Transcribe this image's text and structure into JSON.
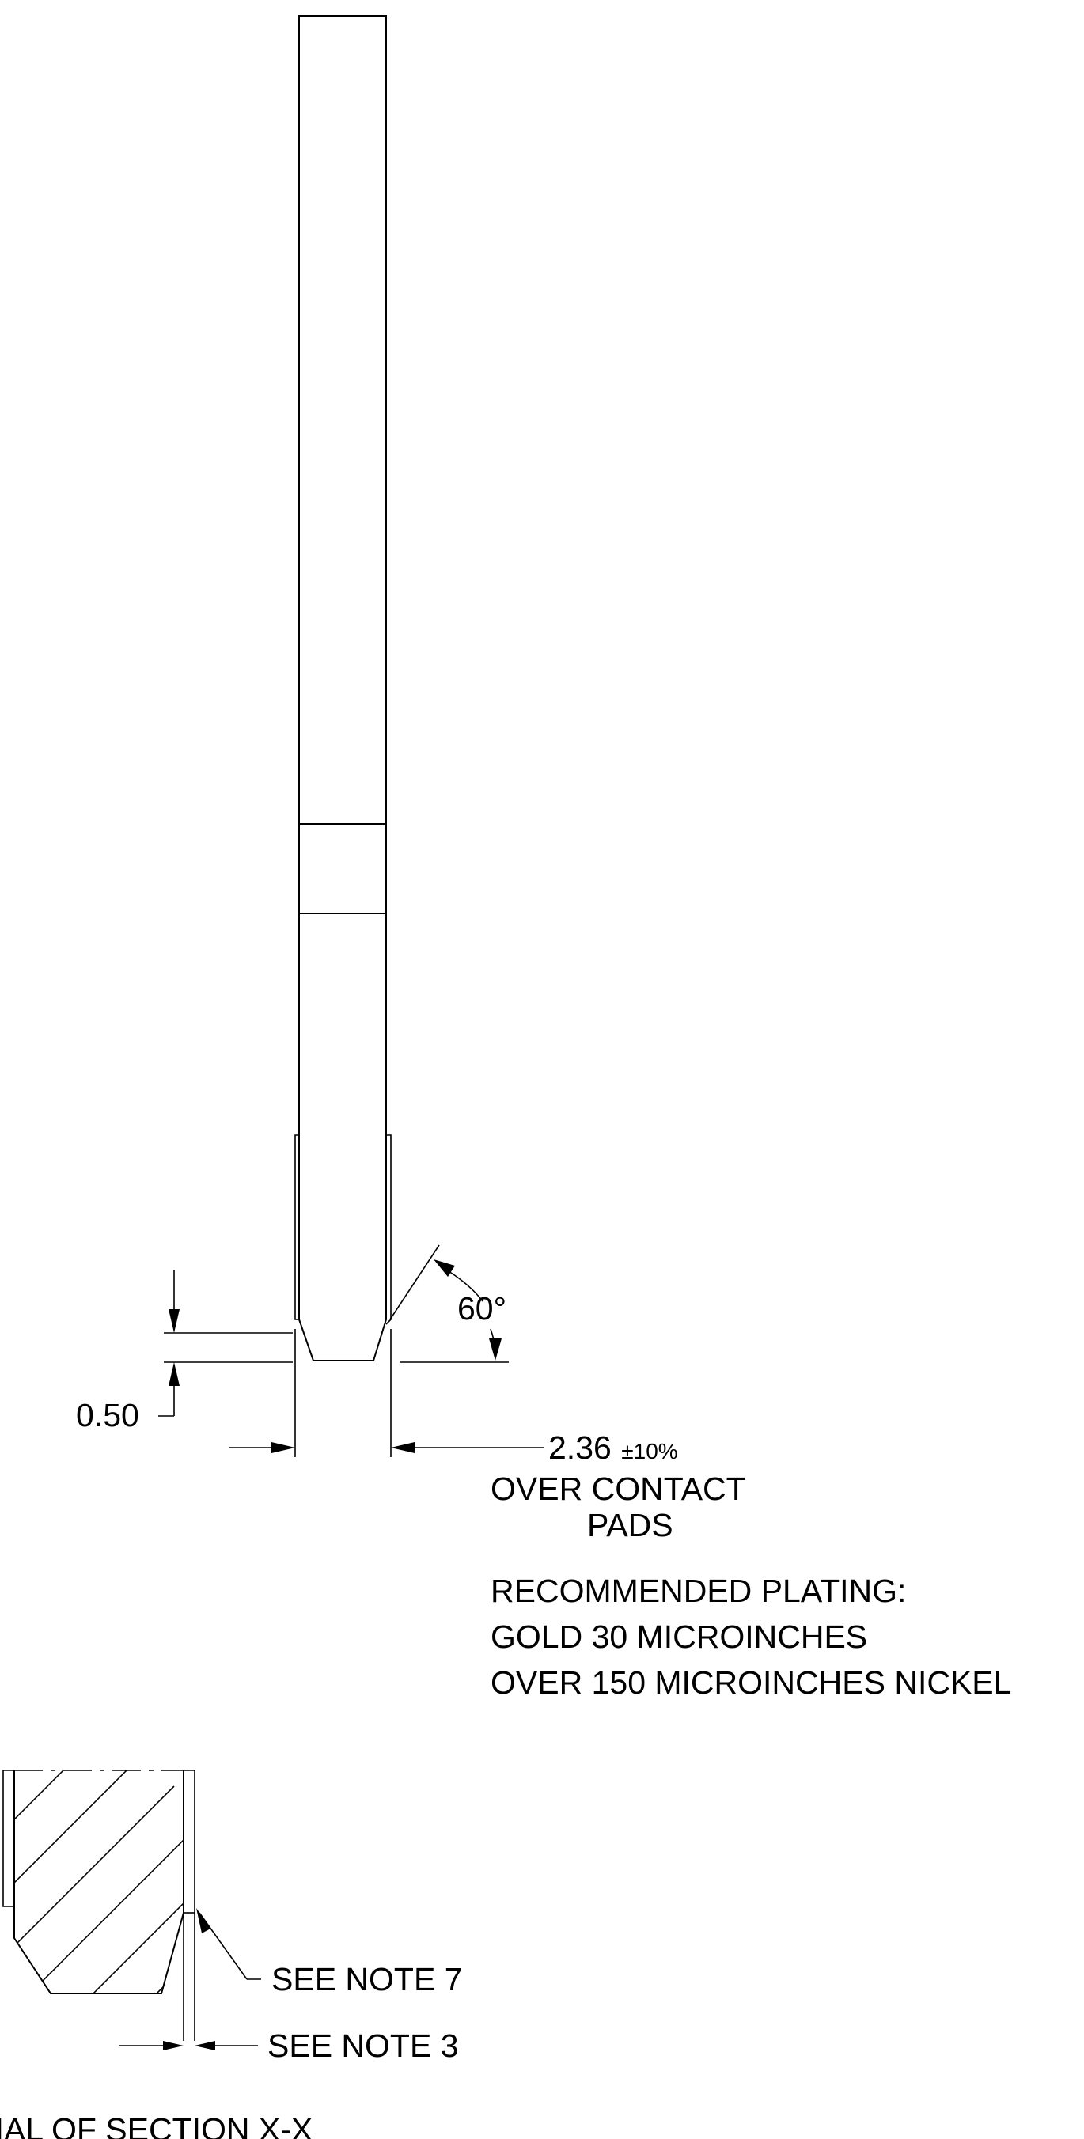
{
  "dimensions": {
    "depth": "0.50",
    "chamfer_angle": "60°",
    "pad_width": "2.36",
    "pad_tolerance": "±10%",
    "pad_note_line1": "OVER CONTACT",
    "pad_note_line2": "PADS"
  },
  "notes": {
    "plating_heading": "RECOMMENDED PLATING:",
    "plating_line1": "GOLD 30 MICROINCHES",
    "plating_line2": "OVER 150 MICROINCHES NICKEL"
  },
  "section_detail": {
    "callout_note7": "SEE NOTE 7",
    "callout_note3": "SEE NOTE 3",
    "caption": "PARTIAL OF SECTION X-X"
  }
}
